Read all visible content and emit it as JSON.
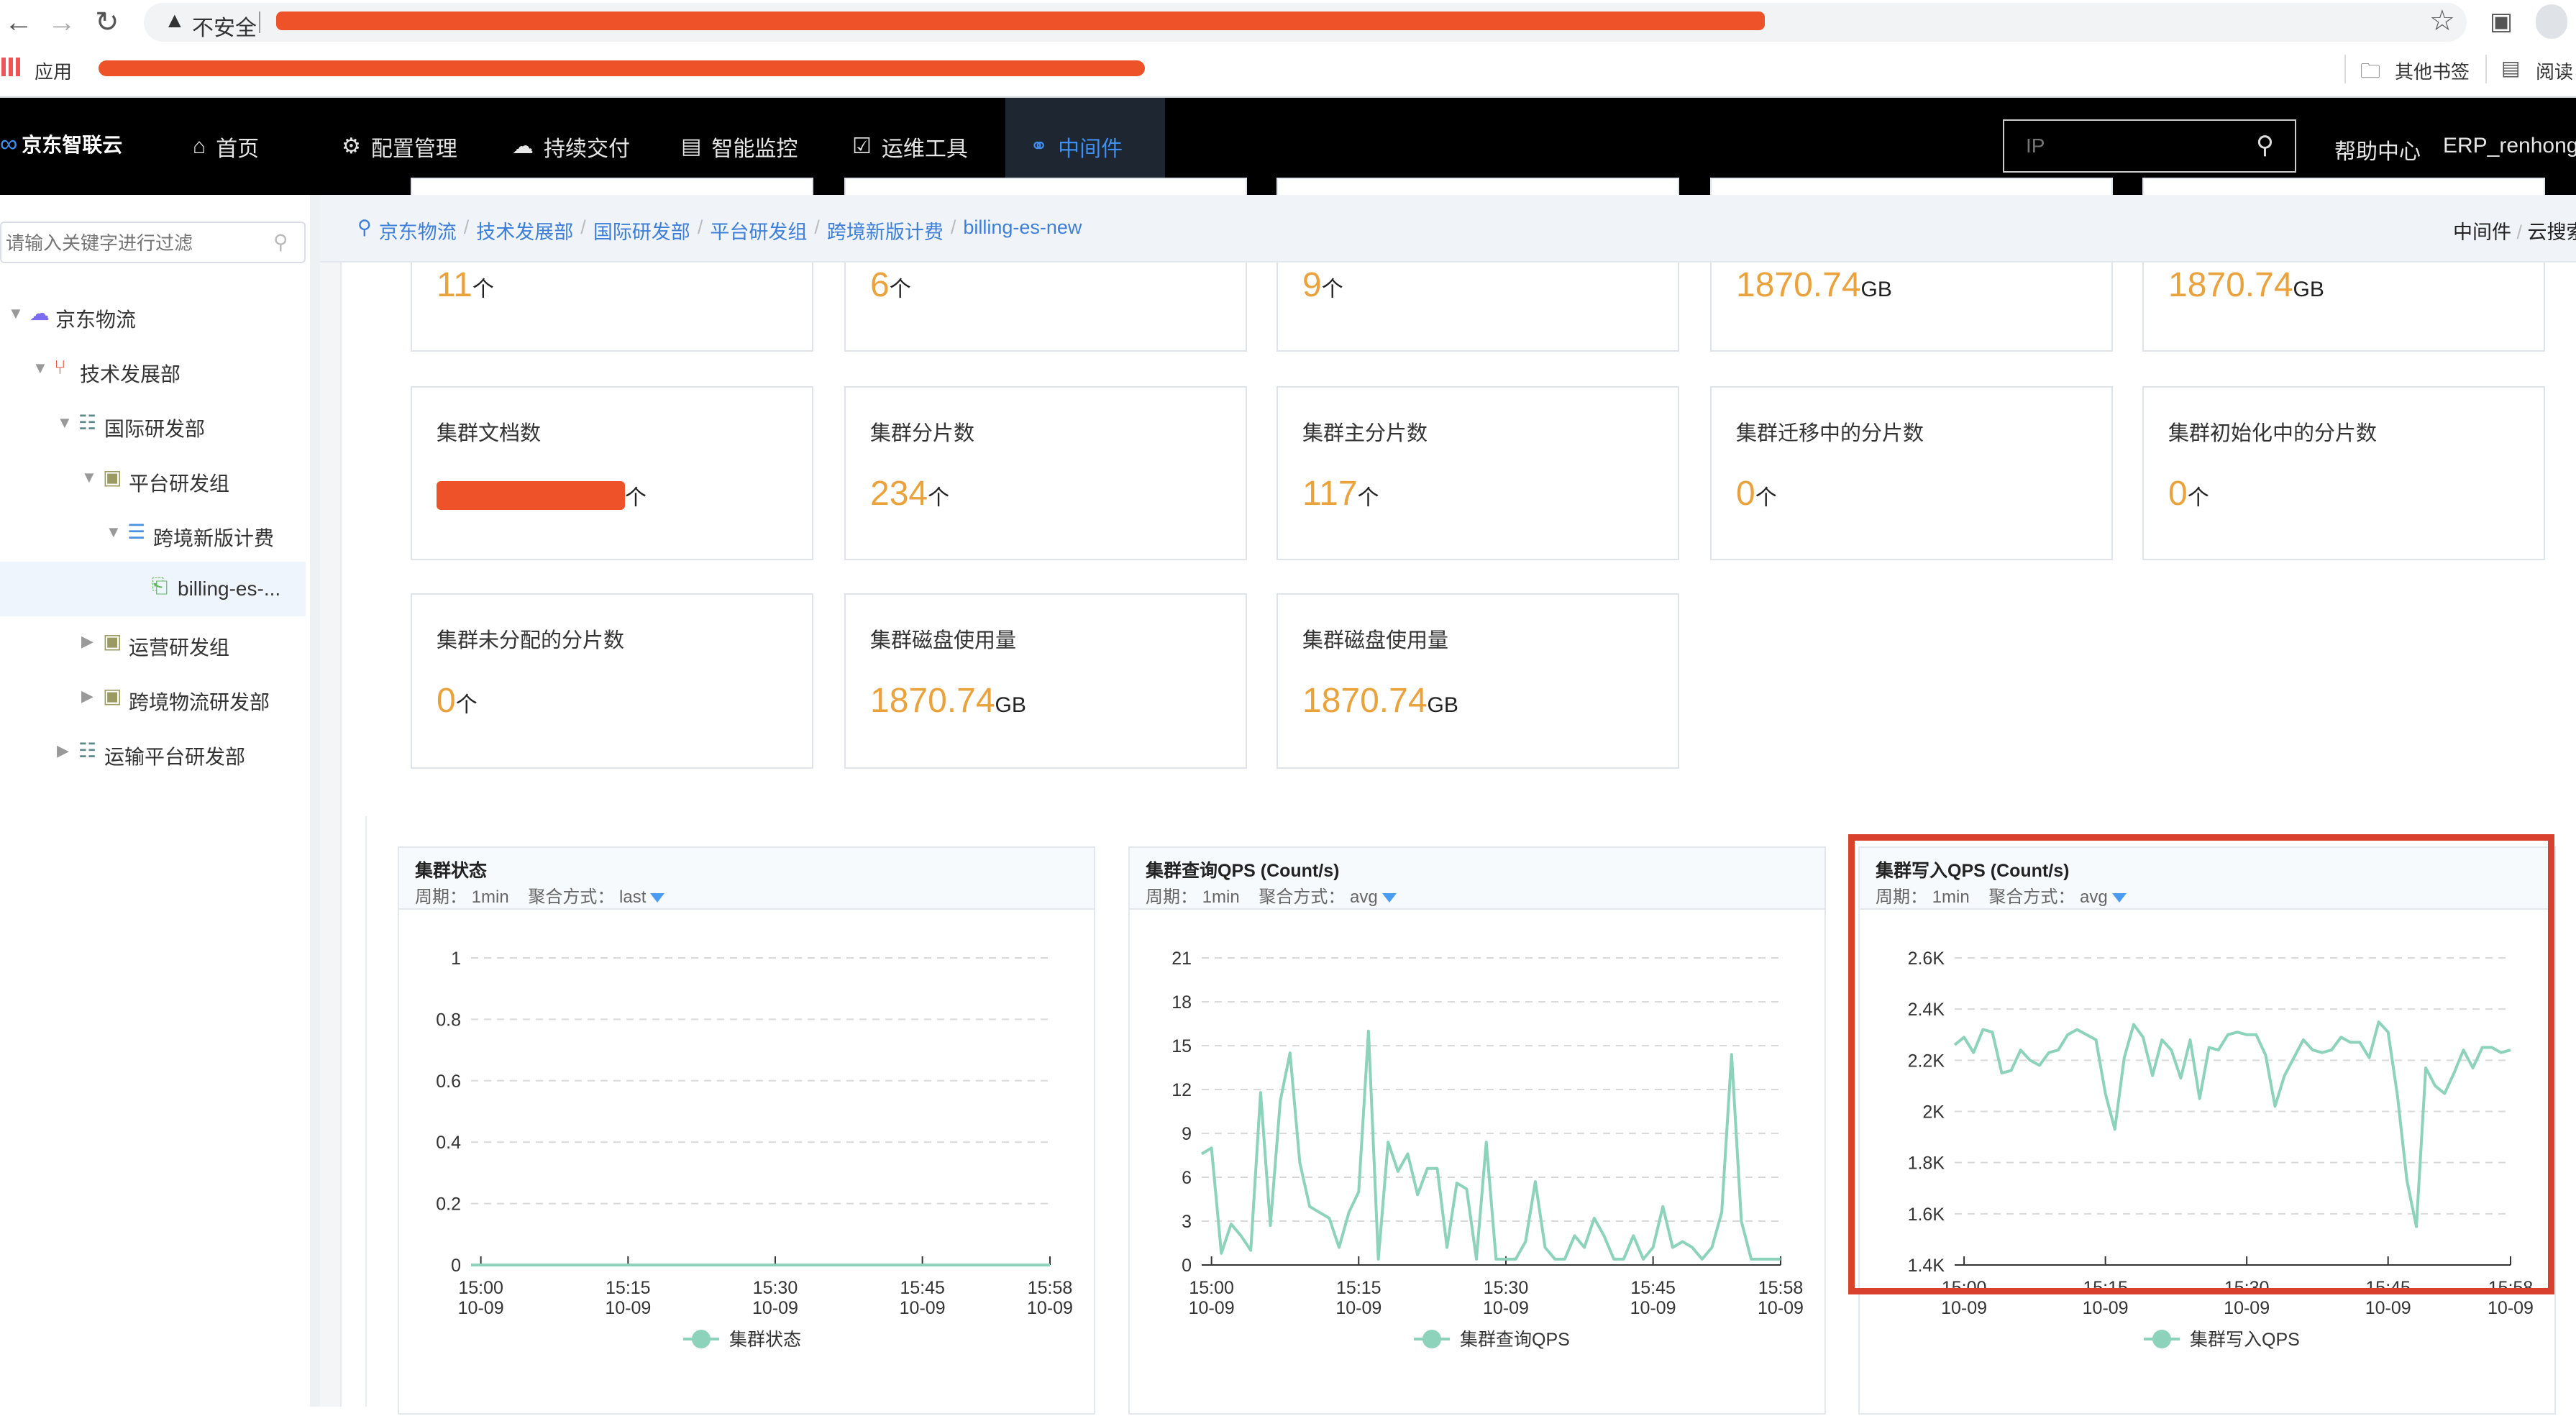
{
  "browser": {
    "security_label": "不安全",
    "bookmarks_apps": "应用",
    "other_bookmarks": "其他书签",
    "reading_list": "阅读"
  },
  "topnav": {
    "logo": "京东智联云",
    "items": [
      {
        "label": "首页",
        "icon": "home-icon"
      },
      {
        "label": "配置管理",
        "icon": "gear-icon"
      },
      {
        "label": "持续交付",
        "icon": "cloud-upload-icon"
      },
      {
        "label": "智能监控",
        "icon": "monitor-icon"
      },
      {
        "label": "运维工具",
        "icon": "edit-box-icon"
      },
      {
        "label": "中间件",
        "icon": "link-icon",
        "active": true
      }
    ],
    "search_placeholder": "IP",
    "help": "帮助中心",
    "user": "ERP_renhong..",
    "active_color": "#3f8ff0"
  },
  "breadcrumb": {
    "items": [
      "京东物流",
      "技术发展部",
      "国际研发部",
      "平台研发组",
      "跨境新版计费",
      "billing-es-new"
    ],
    "right": [
      "中间件",
      "云搜索"
    ]
  },
  "sidebar": {
    "filter_placeholder": "请输入关键字进行过滤",
    "tree": [
      {
        "label": "京东物流",
        "level": 0,
        "caret": "down",
        "icon": "cloud-icon",
        "color": "#7b6cf0"
      },
      {
        "label": "技术发展部",
        "level": 1,
        "caret": "down",
        "icon": "share-icon",
        "color": "#e8573e"
      },
      {
        "label": "国际研发部",
        "level": 2,
        "caret": "down",
        "icon": "org-chart-icon",
        "color": "#5c8a8a"
      },
      {
        "label": "平台研发组",
        "level": 3,
        "caret": "down",
        "icon": "cube-icon",
        "color": "#9a9a62"
      },
      {
        "label": "跨境新版计费",
        "level": 4,
        "caret": "down",
        "icon": "server-icon",
        "color": "#4a90e2"
      },
      {
        "label": "billing-es-...",
        "level": 5,
        "caret": "none",
        "icon": "file-icon",
        "color": "#5cb85c",
        "selected": true
      },
      {
        "label": "运营研发组",
        "level": 3,
        "caret": "right",
        "icon": "cube-icon",
        "color": "#9a9a62"
      },
      {
        "label": "跨境物流研发部",
        "level": 3,
        "caret": "right",
        "icon": "cube-icon",
        "color": "#9a9a62"
      },
      {
        "label": "运输平台研发部",
        "level": 2,
        "caret": "right",
        "icon": "org-chart-icon",
        "color": "#5c8a8a"
      }
    ]
  },
  "stats": {
    "value_color": "#eaa23c",
    "rows": [
      [
        {
          "title": "",
          "value": "11",
          "unit": "个"
        },
        {
          "title": "",
          "value": "6",
          "unit": "个"
        },
        {
          "title": "",
          "value": "9",
          "unit": "个"
        },
        {
          "title": "",
          "value": "1870.74",
          "unit": "GB"
        },
        {
          "title": "",
          "value": "1870.74",
          "unit": "GB"
        }
      ],
      [
        {
          "title": "集群文档数",
          "value": "",
          "unit": "个",
          "redacted": true
        },
        {
          "title": "集群分片数",
          "value": "234",
          "unit": "个"
        },
        {
          "title": "集群主分片数",
          "value": "117",
          "unit": "个"
        },
        {
          "title": "集群迁移中的分片数",
          "value": "0",
          "unit": "个"
        },
        {
          "title": "集群初始化中的分片数",
          "value": "0",
          "unit": "个"
        }
      ],
      [
        {
          "title": "集群未分配的分片数",
          "value": "0",
          "unit": "个"
        },
        {
          "title": "集群磁盘使用量",
          "value": "1870.74",
          "unit": "GB"
        },
        {
          "title": "集群磁盘使用量",
          "value": "1870.74",
          "unit": "GB"
        }
      ]
    ]
  },
  "chart_labels": {
    "period_label": "周期：",
    "agg_label": "聚合方式："
  },
  "chart_data": [
    {
      "type": "line",
      "title": "集群状态",
      "period": "1min",
      "aggregation": "last",
      "color": "#8dd3bb",
      "ylim": [
        0,
        1
      ],
      "yticks": [
        0,
        0.2,
        0.4,
        0.6,
        0.8,
        1
      ],
      "ytick_labels": [
        "0",
        "0.2",
        "0.4",
        "0.6",
        "0.8",
        "1"
      ],
      "xtick_labels": [
        [
          "15:00",
          "10-09"
        ],
        [
          "15:15",
          "10-09"
        ],
        [
          "15:30",
          "10-09"
        ],
        [
          "15:45",
          "10-09"
        ],
        [
          "15:58",
          "10-09"
        ]
      ],
      "xticks": [
        "15:00",
        "15:15",
        "15:30",
        "15:45",
        "15:58"
      ],
      "grid": true,
      "legend": "bottom",
      "series": [
        {
          "name": "集群状态",
          "values": [
            0,
            0,
            0,
            0,
            0,
            0,
            0,
            0,
            0,
            0,
            0,
            0,
            0,
            0,
            0,
            0,
            0,
            0,
            0,
            0,
            0,
            0,
            0,
            0,
            0,
            0,
            0,
            0,
            0,
            0,
            0,
            0,
            0,
            0,
            0,
            0,
            0,
            0,
            0,
            0,
            0,
            0,
            0,
            0,
            0,
            0,
            0,
            0,
            0,
            0,
            0,
            0,
            0,
            0,
            0,
            0,
            0,
            0,
            0,
            0
          ]
        }
      ],
      "x": [
        "14:59",
        "15:00",
        "15:01",
        "15:02",
        "15:03",
        "15:04",
        "15:05",
        "15:06",
        "15:07",
        "15:08",
        "15:09",
        "15:10",
        "15:11",
        "15:12",
        "15:13",
        "15:14",
        "15:15",
        "15:16",
        "15:17",
        "15:18",
        "15:19",
        "15:20",
        "15:21",
        "15:22",
        "15:23",
        "15:24",
        "15:25",
        "15:26",
        "15:27",
        "15:28",
        "15:29",
        "15:30",
        "15:31",
        "15:32",
        "15:33",
        "15:34",
        "15:35",
        "15:36",
        "15:37",
        "15:38",
        "15:39",
        "15:40",
        "15:41",
        "15:42",
        "15:43",
        "15:44",
        "15:45",
        "15:46",
        "15:47",
        "15:48",
        "15:49",
        "15:50",
        "15:51",
        "15:52",
        "15:53",
        "15:54",
        "15:55",
        "15:56",
        "15:57",
        "15:58"
      ]
    },
    {
      "type": "line",
      "title": "集群查询QPS (Count/s)",
      "period": "1min",
      "aggregation": "avg",
      "color": "#8dd3bb",
      "ylim": [
        0,
        21
      ],
      "yticks": [
        0,
        3,
        6,
        9,
        12,
        15,
        18,
        21
      ],
      "ytick_labels": [
        "0",
        "3",
        "6",
        "9",
        "12",
        "15",
        "18",
        "21"
      ],
      "xtick_labels": [
        [
          "15:00",
          "10-09"
        ],
        [
          "15:15",
          "10-09"
        ],
        [
          "15:30",
          "10-09"
        ],
        [
          "15:45",
          "10-09"
        ],
        [
          "15:58",
          "10-09"
        ]
      ],
      "xticks": [
        "15:00",
        "15:15",
        "15:30",
        "15:45",
        "15:58"
      ],
      "grid": true,
      "legend": "bottom",
      "series": [
        {
          "name": "集群查询QPS",
          "values": [
            7.6,
            8,
            0.8,
            2.8,
            2,
            1,
            11.8,
            2.7,
            11.2,
            14.5,
            7,
            4,
            3.6,
            3.2,
            1.2,
            3.6,
            5,
            16,
            0.4,
            8.4,
            6.4,
            7.6,
            4.8,
            6.6,
            6.6,
            1.2,
            5.6,
            5.2,
            0.4,
            8.4,
            0.4,
            0.4,
            0.4,
            1.6,
            5.7,
            1.2,
            0.4,
            0.4,
            2,
            1.2,
            3.2,
            2,
            0.4,
            0.4,
            2,
            0.4,
            1.2,
            4,
            1.2,
            1.6,
            1.2,
            0.4,
            1.2,
            3.6,
            14.4,
            3,
            0.4,
            0.4,
            0.4,
            0.4
          ]
        }
      ],
      "x": [
        "14:59",
        "15:00",
        "15:01",
        "15:02",
        "15:03",
        "15:04",
        "15:05",
        "15:06",
        "15:07",
        "15:08",
        "15:09",
        "15:10",
        "15:11",
        "15:12",
        "15:13",
        "15:14",
        "15:15",
        "15:16",
        "15:17",
        "15:18",
        "15:19",
        "15:20",
        "15:21",
        "15:22",
        "15:23",
        "15:24",
        "15:25",
        "15:26",
        "15:27",
        "15:28",
        "15:29",
        "15:30",
        "15:31",
        "15:32",
        "15:33",
        "15:34",
        "15:35",
        "15:36",
        "15:37",
        "15:38",
        "15:39",
        "15:40",
        "15:41",
        "15:42",
        "15:43",
        "15:44",
        "15:45",
        "15:46",
        "15:47",
        "15:48",
        "15:49",
        "15:50",
        "15:51",
        "15:52",
        "15:53",
        "15:54",
        "15:55",
        "15:56",
        "15:57",
        "15:58"
      ]
    },
    {
      "type": "line",
      "title": "集群写入QPS (Count/s)",
      "period": "1min",
      "aggregation": "avg",
      "color": "#8dd3bb",
      "highlight_color": "#d9412e",
      "ylim": [
        1400,
        2600
      ],
      "yticks": [
        1400,
        1600,
        1800,
        2000,
        2200,
        2400,
        2600
      ],
      "ytick_labels": [
        "1.4K",
        "1.6K",
        "1.8K",
        "2K",
        "2.2K",
        "2.4K",
        "2.6K"
      ],
      "xtick_labels": [
        [
          "15:00",
          "10-09"
        ],
        [
          "15:15",
          "10-09"
        ],
        [
          "15:30",
          "10-09"
        ],
        [
          "15:45",
          "10-09"
        ],
        [
          "15:58",
          "10-09"
        ]
      ],
      "xticks": [
        "15:00",
        "15:15",
        "15:30",
        "15:45",
        "15:58"
      ],
      "grid": true,
      "legend": "bottom",
      "series": [
        {
          "name": "集群写入QPS",
          "values": [
            2260,
            2290,
            2230,
            2320,
            2310,
            2150,
            2160,
            2240,
            2200,
            2180,
            2230,
            2240,
            2300,
            2320,
            2300,
            2280,
            2070,
            1930,
            2210,
            2340,
            2290,
            2140,
            2280,
            2240,
            2130,
            2280,
            2050,
            2250,
            2240,
            2300,
            2310,
            2300,
            2300,
            2220,
            2020,
            2140,
            2210,
            2280,
            2240,
            2230,
            2240,
            2290,
            2270,
            2270,
            2210,
            2350,
            2310,
            2060,
            1730,
            1550,
            2170,
            2100,
            2070,
            2150,
            2240,
            2170,
            2250,
            2250,
            2230,
            2240
          ]
        }
      ],
      "x": [
        "14:59",
        "15:00",
        "15:01",
        "15:02",
        "15:03",
        "15:04",
        "15:05",
        "15:06",
        "15:07",
        "15:08",
        "15:09",
        "15:10",
        "15:11",
        "15:12",
        "15:13",
        "15:14",
        "15:15",
        "15:16",
        "15:17",
        "15:18",
        "15:19",
        "15:20",
        "15:21",
        "15:22",
        "15:23",
        "15:24",
        "15:25",
        "15:26",
        "15:27",
        "15:28",
        "15:29",
        "15:30",
        "15:31",
        "15:32",
        "15:33",
        "15:34",
        "15:35",
        "15:36",
        "15:37",
        "15:38",
        "15:39",
        "15:40",
        "15:41",
        "15:42",
        "15:43",
        "15:44",
        "15:45",
        "15:46",
        "15:47",
        "15:48",
        "15:49",
        "15:50",
        "15:51",
        "15:52",
        "15:53",
        "15:54",
        "15:55",
        "15:56",
        "15:57",
        "15:58"
      ]
    }
  ]
}
